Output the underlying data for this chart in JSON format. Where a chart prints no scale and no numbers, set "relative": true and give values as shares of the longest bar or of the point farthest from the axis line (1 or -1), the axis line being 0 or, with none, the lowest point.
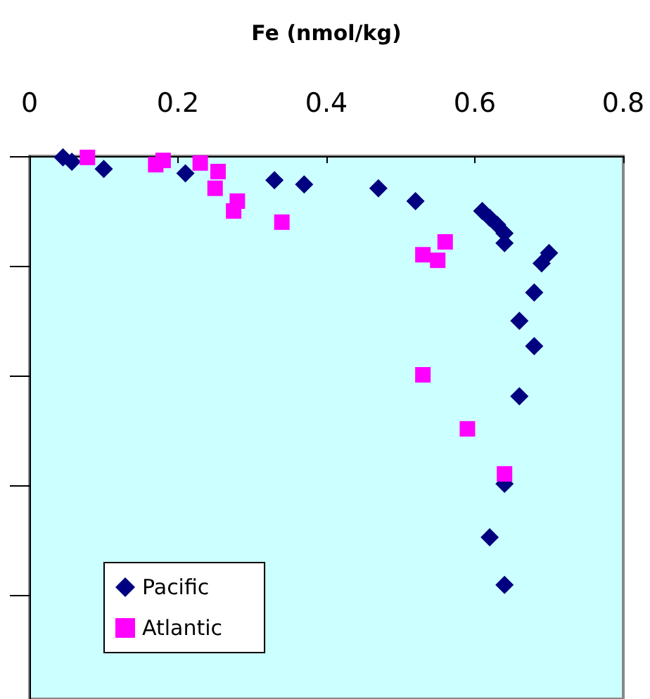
{
  "chart_data": {
    "type": "scatter",
    "xlabel": "Fe (nmol/kg)",
    "relative": true,
    "xlim": [
      0,
      0.8
    ],
    "xticks": [
      0,
      0.2,
      0.4,
      0.6,
      0.8
    ],
    "grid": false,
    "legend": "bottom left",
    "tick_labels": "x",
    "series": [
      {
        "name": "Pacific",
        "color": "#000080",
        "marker": "diamond",
        "x": [
          0.045,
          0.057,
          0.1,
          0.21,
          0.33,
          0.37,
          0.47,
          0.52,
          0.61,
          0.62,
          0.63,
          0.64,
          0.64,
          0.7,
          0.69,
          0.68,
          0.66,
          0.68,
          0.66,
          0.64,
          0.62,
          0.64
        ],
        "values": [
          -0.003,
          -0.013,
          -0.03,
          -0.04,
          -0.056,
          -0.066,
          -0.075,
          -0.105,
          -0.128,
          -0.144,
          -0.16,
          -0.18,
          -0.203,
          -0.226,
          -0.25,
          -0.318,
          -0.384,
          -0.443,
          -0.56,
          -0.764,
          -0.889,
          -1
        ]
      },
      {
        "name": "Atlantic",
        "color": "#ff00ff",
        "marker": "square",
        "x": [
          0.078,
          0.17,
          0.18,
          0.23,
          0.254,
          0.25,
          0.28,
          0.275,
          0.34,
          0.53,
          0.55,
          0.56,
          0.53,
          0.59,
          0.64
        ],
        "values": [
          -0.003,
          -0.02,
          -0.01,
          -0.016,
          -0.036,
          -0.075,
          -0.105,
          -0.128,
          -0.154,
          -0.23,
          -0.243,
          -0.2,
          -0.51,
          -0.636,
          -0.741
        ]
      }
    ]
  }
}
